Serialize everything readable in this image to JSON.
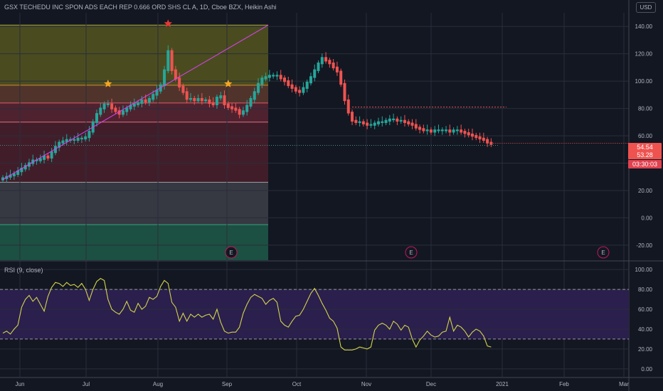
{
  "header": {
    "title": "GSX TECHEDU INC SPON ADS EACH REP 0.666 ORD SHS CL A, 1D, Cboe BZX, Heikin Ashi",
    "currency": "USD"
  },
  "price_tags": {
    "last_price": "54.54",
    "close": "53.28",
    "countdown": "03:30:03"
  },
  "rsi_legend": "RSI (9, close)",
  "earnings_label": "E",
  "colors": {
    "background": "#131722",
    "up": "#26a69a",
    "down": "#ef5350",
    "rsi_line": "#d4d44a",
    "rsi_band": "#2a1f4d",
    "trendline": "#e040fb"
  },
  "chart_data": [
    {
      "type": "candlestick",
      "title": "GSX TECHEDU INC SPON ADS EACH REP 0.666 ORD SHS CL A, 1D, Cboe BZX, Heikin Ashi",
      "xlabel": "",
      "ylabel": "",
      "x_ticks": [
        "Jun",
        "Jul",
        "Aug",
        "Sep",
        "Oct",
        "Nov",
        "Dec",
        "2021",
        "Feb",
        "Mar"
      ],
      "y_ticks": [
        "140.00",
        "120.00",
        "100.00",
        "80.00",
        "60.00",
        "20.00",
        "0.00",
        "-20.00"
      ],
      "ylim": [
        -31,
        150
      ],
      "series": [
        {
          "values": [
            29,
            30,
            31,
            32,
            34,
            36,
            38,
            40,
            42,
            42,
            43,
            45,
            44,
            48,
            52,
            55,
            56,
            57,
            57,
            57,
            58,
            58,
            59,
            63,
            70,
            76,
            80,
            83,
            83,
            80,
            78,
            76,
            78,
            80,
            82,
            83,
            84,
            86,
            85,
            87,
            90,
            93,
            97,
            108,
            122,
            108,
            102,
            96,
            92,
            87,
            87,
            86,
            87,
            86,
            86,
            84,
            83,
            88,
            89,
            83,
            81,
            80,
            79,
            76,
            78,
            82,
            87,
            92,
            98,
            102,
            103,
            104,
            104,
            104,
            102,
            100,
            97,
            95,
            93,
            92,
            95,
            99,
            103,
            108,
            113,
            117,
            115,
            113,
            110,
            107,
            98,
            86,
            77,
            71,
            70,
            70,
            69,
            68,
            68,
            69,
            70,
            70,
            71,
            72,
            72,
            71,
            71,
            70,
            69,
            68,
            66,
            65,
            64,
            64,
            63,
            64,
            64,
            64,
            64,
            63,
            64,
            64,
            63,
            62,
            61,
            60,
            59,
            58,
            57,
            55,
            54
          ]
        }
      ],
      "annotations": {
        "stars": [
          [
            "2020-07-08",
            97
          ],
          [
            "2020-08-04",
            141
          ],
          [
            "2020-09-01",
            97
          ]
        ],
        "horizontal_dotted_levels": [
          81,
          53
        ],
        "shaded_bands": [
          [
            97,
            141
          ],
          [
            84,
            97
          ],
          [
            70,
            84
          ],
          [
            26,
            70
          ],
          [
            -5,
            26
          ],
          [
            -31,
            -5
          ]
        ],
        "earnings_markers": [
          "2020-09-01",
          "2020-11-26",
          "2021-02-26"
        ]
      }
    },
    {
      "type": "line",
      "title": "RSI (9, close)",
      "xlabel": "",
      "ylabel": "",
      "y_ticks": [
        "100.00",
        "80.00",
        "60.00",
        "40.00",
        "20.00",
        "0.00"
      ],
      "ylim": [
        -8,
        108
      ],
      "bands": [
        30,
        80
      ],
      "series": [
        {
          "values": [
            36,
            38,
            35,
            40,
            44,
            62,
            70,
            74,
            68,
            72,
            65,
            58,
            73,
            82,
            87,
            86,
            83,
            87,
            84,
            85,
            82,
            86,
            80,
            69,
            80,
            88,
            91,
            89,
            70,
            60,
            57,
            55,
            60,
            68,
            59,
            57,
            66,
            60,
            63,
            72,
            70,
            73,
            83,
            89,
            86,
            67,
            62,
            48,
            56,
            48,
            55,
            52,
            55,
            52,
            54,
            55,
            50,
            60,
            47,
            38,
            36,
            37,
            37,
            42,
            56,
            65,
            72,
            75,
            73,
            71,
            65,
            69,
            71,
            67,
            48,
            44,
            42,
            48,
            53,
            54,
            60,
            68,
            76,
            81,
            74,
            66,
            59,
            51,
            48,
            41,
            22,
            19,
            19,
            19,
            20,
            22,
            21,
            20,
            22,
            39,
            44,
            46,
            44,
            40,
            48,
            45,
            39,
            44,
            42,
            30,
            22,
            29,
            33,
            38,
            34,
            32,
            33,
            37,
            38,
            52,
            38,
            44,
            42,
            38,
            32,
            37,
            40,
            38,
            33,
            23,
            22
          ]
        }
      ]
    }
  ]
}
